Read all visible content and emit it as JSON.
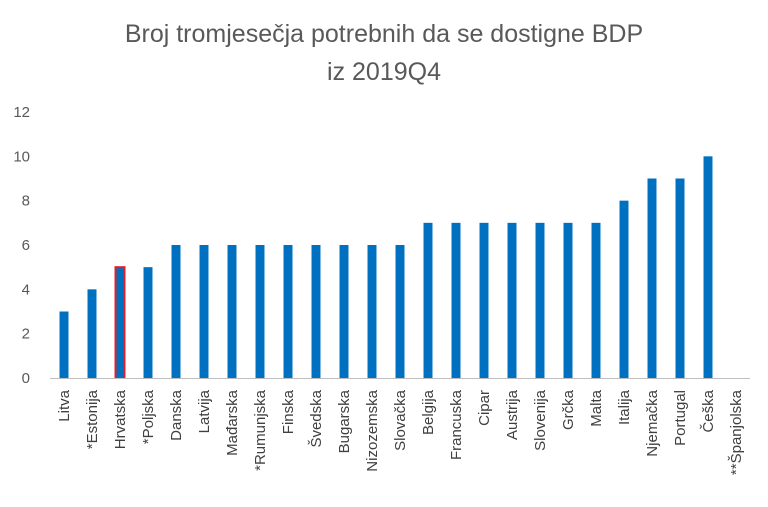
{
  "chart_data": {
    "type": "bar",
    "title": "Broj tromjesečja potrebnih da se dostigne BDP",
    "subtitle": "iz 2019Q4",
    "xlabel": "",
    "ylabel": "",
    "ylim": [
      0,
      12
    ],
    "yticks": [
      "0",
      "2",
      "4",
      "6",
      "8",
      "10",
      "12"
    ],
    "grid": false,
    "legend": "none",
    "bar_color": "#0070c0",
    "highlight_border_color": "#e0202a",
    "highlight_category": "Hrvatska",
    "categories": [
      "Litva",
      "*Estonija",
      "Hrvatska",
      "*Poljska",
      "Danska",
      "Latvija",
      "Mađarska",
      "*Rumunjska",
      "Finska",
      "Švedska",
      "Bugarska",
      "Nizozemska",
      "Slovačka",
      "Belgija",
      "Francuska",
      "Cipar",
      "Austrija",
      "Slovenija",
      "Grčka",
      "Malta",
      "Italija",
      "Njemačka",
      "Portugal",
      "Češka",
      "**Španjolska"
    ],
    "values": [
      3,
      4,
      5,
      5,
      6,
      6,
      6,
      6,
      6,
      6,
      6,
      6,
      6,
      7,
      7,
      7,
      7,
      7,
      7,
      7,
      8,
      9,
      9,
      10,
      0
    ]
  }
}
